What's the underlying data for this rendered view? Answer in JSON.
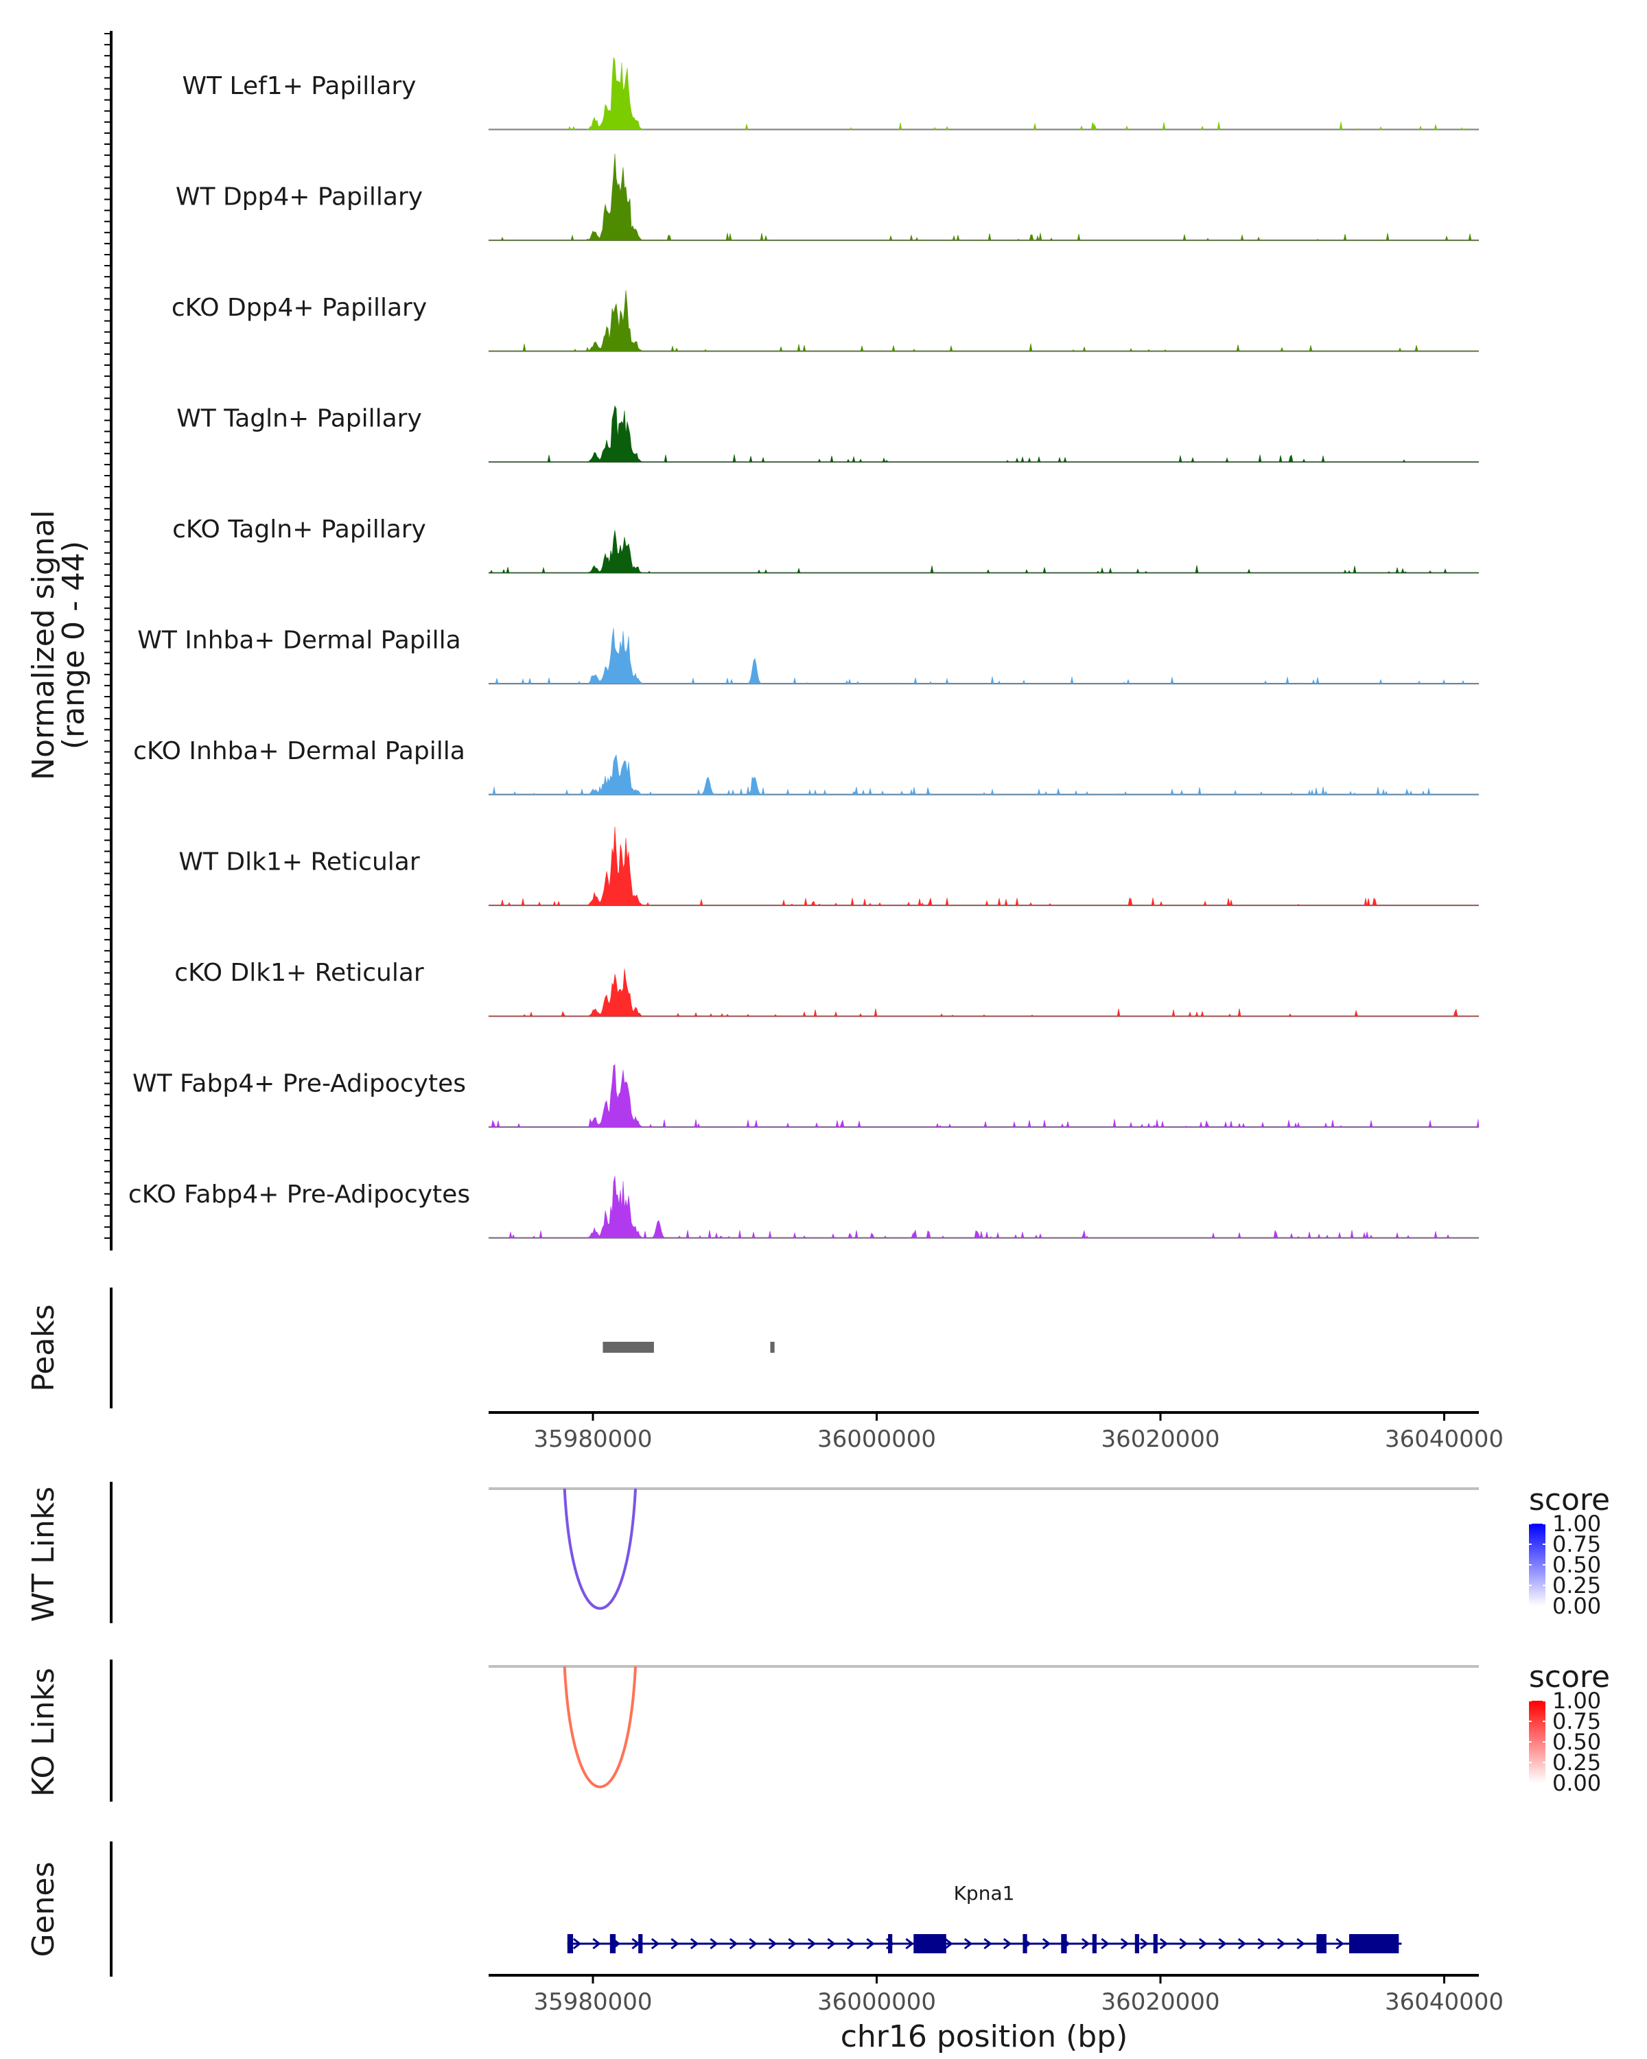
{
  "chart_data": {
    "type": "coverage",
    "title": "",
    "region": {
      "chrom": "chr16",
      "start": 35974000,
      "end": 36044000
    },
    "coverage": {
      "ylabel_line1": "Normalized signal",
      "ylabel_line2": "(range 0 - 44)",
      "ylim": [
        0,
        44
      ],
      "tracks": [
        {
          "name": "WT Lef1+ Papillary",
          "color": "#7CCD00",
          "scale": 1.0,
          "bg": 0.35,
          "extra": []
        },
        {
          "name": "WT Dpp4+ Papillary",
          "color": "#4E8B00",
          "scale": 1.05,
          "bg": 0.45,
          "extra": []
        },
        {
          "name": "cKO Dpp4+ Papillary",
          "color": "#4E8B00",
          "scale": 0.75,
          "bg": 0.4,
          "extra": []
        },
        {
          "name": "WT Tagln+ Papillary",
          "color": "#0B5E0B",
          "scale": 0.75,
          "bg": 0.55,
          "extra": []
        },
        {
          "name": "cKO Tagln+ Papillary",
          "color": "#0B5E0B",
          "scale": 0.55,
          "bg": 0.6,
          "extra": []
        },
        {
          "name": "WT Inhba+ Dermal Papilla",
          "color": "#55A6E6",
          "scale": 0.8,
          "bg": 0.55,
          "extra": [
            {
              "pos": 35992800,
              "h": 13
            }
          ]
        },
        {
          "name": "cKO Inhba+ Dermal Papilla",
          "color": "#55A6E6",
          "scale": 0.55,
          "bg": 0.85,
          "extra": [
            {
              "pos": 35992800,
              "h": 9
            },
            {
              "pos": 35989500,
              "h": 9
            }
          ]
        },
        {
          "name": "WT Dlk1+ Reticular",
          "color": "#FF2A2A",
          "scale": 1.0,
          "bg": 0.7,
          "extra": []
        },
        {
          "name": "cKO Dlk1+ Reticular",
          "color": "#FF2A2A",
          "scale": 0.7,
          "bg": 0.55,
          "extra": []
        },
        {
          "name": "WT Fabp4+ Pre-Adipocytes",
          "color": "#B23AEE",
          "scale": 0.85,
          "bg": 0.85,
          "extra": []
        },
        {
          "name": "cKO Fabp4+ Pre-Adipocytes",
          "color": "#B23AEE",
          "scale": 0.85,
          "bg": 0.95,
          "extra": [
            {
              "pos": 35986000,
              "h": 9
            }
          ]
        }
      ],
      "main_peaks": [
        {
          "pos": 35981500,
          "h": 6
        },
        {
          "pos": 35982300,
          "h": 16
        },
        {
          "pos": 35982900,
          "h": 38
        },
        {
          "pos": 35983400,
          "h": 27
        },
        {
          "pos": 35983800,
          "h": 30
        },
        {
          "pos": 35984400,
          "h": 6
        }
      ]
    },
    "peaks": {
      "label": "Peaks",
      "color": "#666666",
      "regions": [
        [
          35980700,
          35984300
        ],
        [
          35992500,
          35992800
        ]
      ]
    },
    "x_axis": {
      "ticks": [
        35980000,
        36000000,
        36020000,
        36040000
      ],
      "tick_labels": [
        "35980000",
        "36000000",
        "36020000",
        "36040000"
      ],
      "title": "chr16 position (bp)"
    },
    "links": [
      {
        "label": "WT Links",
        "legend_title": "score",
        "color": "#7B55E6",
        "gradient": [
          "#FFFFFF",
          "#0000FF"
        ],
        "start": 35978000,
        "end": 35983000,
        "score": 0.55,
        "legend_labels": [
          "1.00",
          "0.75",
          "0.50",
          "0.25",
          "0.00"
        ]
      },
      {
        "label": "KO Links",
        "legend_title": "score",
        "color": "#FF7357",
        "gradient": [
          "#FFFFFF",
          "#FF0000"
        ],
        "start": 35978000,
        "end": 35983000,
        "score": 0.55,
        "legend_labels": [
          "1.00",
          "0.75",
          "0.50",
          "0.25",
          "0.00"
        ]
      }
    ],
    "genes": {
      "label": "Genes",
      "color": "#00008B",
      "gene_name": "Kpna1",
      "start": 35978200,
      "end": 36037000,
      "strand": "+",
      "exons": [
        [
          35978200,
          35978600
        ],
        [
          35981200,
          35981600
        ],
        [
          35983200,
          35983500
        ],
        [
          36000800,
          36001100
        ],
        [
          36002600,
          36004900
        ],
        [
          36010300,
          36010600
        ],
        [
          36013000,
          36013400
        ],
        [
          36015200,
          36015500
        ],
        [
          36018200,
          36018500
        ],
        [
          36019500,
          36019800
        ],
        [
          36031000,
          36031700
        ],
        [
          36033300,
          36036800
        ]
      ]
    }
  }
}
